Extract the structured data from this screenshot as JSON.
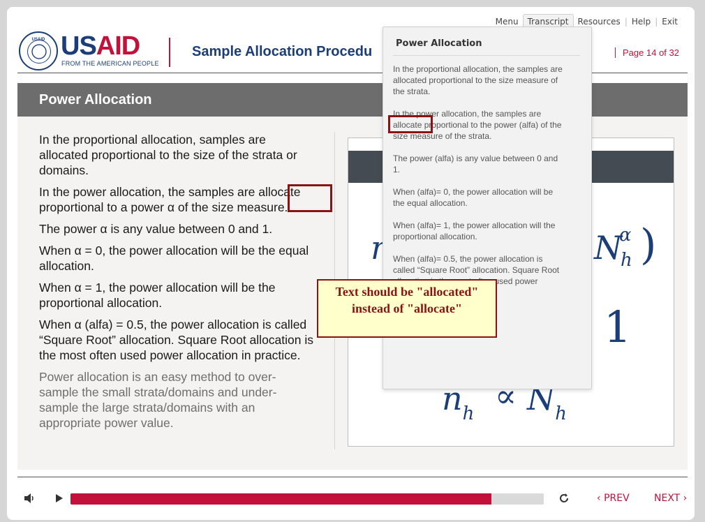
{
  "topnav": {
    "menu": "Menu",
    "transcript": "Transcript",
    "resources": "Resources",
    "help": "Help",
    "exit": "Exit"
  },
  "logo": {
    "seal_text": "USAID",
    "brand_us": "US",
    "brand_aid": "AID",
    "tagline": "FROM THE AMERICAN PEOPLE"
  },
  "course_title": "Sample Allocation Procedu",
  "page": {
    "label": "Page",
    "current": "14",
    "of": "of",
    "total": "32"
  },
  "slide": {
    "title": "Power Allocation",
    "paragraphs": [
      "In the proportional allocation, samples are allocated proportional to the size of the strata or domains.",
      "In the power allocation, the samples are allocate proportional to a power α of the size measure.",
      "The power α is any value between 0 and 1.",
      "When α = 0, the power allocation will be the equal allocation.",
      "When α = 1, the power allocation will be the proportional allocation.",
      "When α (alfa) = 0.5, the power allocation is called “Square Root” allocation. Square Root allocation is the most often used power allocation in practice.",
      "Power allocation is an easy method to over-sample the small strata/domains and under-sample the large strata/domains with an appropriate power value."
    ]
  },
  "transcript_panel": {
    "title": "Power Allocation",
    "paragraphs": [
      "In the proportional allocation, the samples are allocated proportional to the size measure of the strata.",
      "In the power allocation, the samples are allocate proportional to the power (alfa) of the size measure of the strata.",
      "The power (alfa) is any value between 0 and 1.",
      "When (alfa)= 0, the power allocation will be the equal allocation.",
      "When (alfa)= 1, the power allocation will the proportional allocation.",
      "When (alfa)= 0.5, the power allocation is called “Square Root” allocation. Square Root allocation is the most often used power allocation in practice."
    ]
  },
  "formula": {
    "frag1": "n",
    "frag2": "N",
    "sup": "α",
    "sub": "h",
    "paren": ")",
    "one": "1",
    "frag3": "n",
    "sub3": "h",
    "prop": "∝",
    "frag4": "N",
    "sub4": "h"
  },
  "annotation": {
    "callout_text": "Text should be \"allocated\" instead of \"allocate\""
  },
  "controls": {
    "progress_percent": 89,
    "prev": "PREV",
    "next": "NEXT",
    "icons": [
      "volume-icon",
      "play-icon",
      "replay-icon"
    ]
  },
  "colors": {
    "brand_blue": "#1b3d78",
    "brand_red": "#c2113a",
    "header_gray": "#6d6d6d",
    "annotation_red": "#8b1212",
    "callout_bg": "#ffffcc"
  }
}
